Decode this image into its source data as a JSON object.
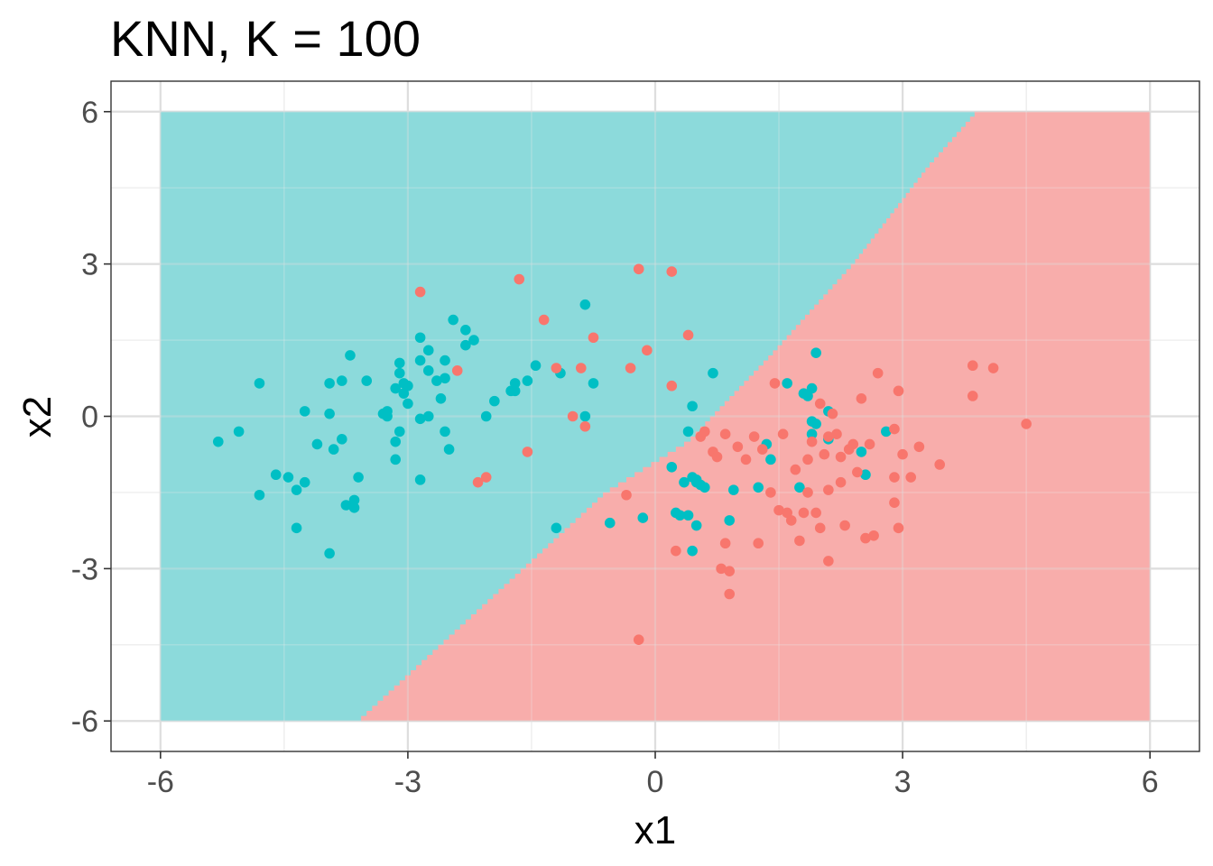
{
  "chart_data": {
    "type": "scatter",
    "title": "KNN, K = 100",
    "xlabel": "x1",
    "ylabel": "x2",
    "xlim": [
      -6.6,
      6.6
    ],
    "ylim": [
      -6.6,
      6.6
    ],
    "x_ticks": [
      -6,
      -3,
      0,
      3,
      6
    ],
    "y_ticks": [
      -6,
      -3,
      0,
      3,
      6
    ],
    "x_tick_labels": [
      "-6",
      "-3",
      "0",
      "3",
      "6"
    ],
    "y_tick_labels": [
      "-6",
      "-3",
      "0",
      "3",
      "6"
    ],
    "grid": true,
    "legend": "none",
    "colors": {
      "teal": "#00BFC4",
      "red": "#F8766D",
      "teal_region": "#8cdadb",
      "red_region": "#f8adab"
    },
    "decision_region": {
      "x_range": [
        -6,
        6
      ],
      "y_range": [
        -6,
        6
      ],
      "boundary_x1_x2": [
        [
          -3.6,
          -6
        ],
        [
          -2.6,
          -4.5
        ],
        [
          -1.6,
          -3.0
        ],
        [
          -0.6,
          -1.5
        ],
        [
          0.4,
          -0.5
        ],
        [
          1.4,
          1.2
        ],
        [
          2.4,
          3.0
        ],
        [
          3.3,
          4.9
        ],
        [
          3.9,
          6
        ]
      ]
    },
    "series": [
      {
        "color": "teal",
        "points": [
          [
            -5.3,
            -0.5
          ],
          [
            -5.05,
            -0.3
          ],
          [
            -4.8,
            0.65
          ],
          [
            -4.8,
            -1.55
          ],
          [
            -4.6,
            -1.15
          ],
          [
            -4.45,
            -1.2
          ],
          [
            -4.35,
            -1.45
          ],
          [
            -4.35,
            -2.2
          ],
          [
            -4.25,
            0.1
          ],
          [
            -4.25,
            -1.3
          ],
          [
            -4.1,
            -0.55
          ],
          [
            -3.95,
            0.65
          ],
          [
            -3.95,
            0.05
          ],
          [
            -3.95,
            -2.7
          ],
          [
            -3.9,
            -0.65
          ],
          [
            -3.8,
            0.7
          ],
          [
            -3.8,
            -0.45
          ],
          [
            -3.75,
            -1.75
          ],
          [
            -3.7,
            1.2
          ],
          [
            -3.65,
            -1.65
          ],
          [
            -3.65,
            -1.8
          ],
          [
            -3.6,
            -1.2
          ],
          [
            -3.5,
            0.7
          ],
          [
            -3.3,
            0.05
          ],
          [
            -3.25,
            0.0
          ],
          [
            -3.25,
            0.1
          ],
          [
            -3.15,
            0.55
          ],
          [
            -3.15,
            -0.5
          ],
          [
            -3.15,
            -0.85
          ],
          [
            -3.1,
            1.05
          ],
          [
            -3.1,
            0.85
          ],
          [
            -3.1,
            -0.3
          ],
          [
            -3.05,
            0.65
          ],
          [
            -3.05,
            0.45
          ],
          [
            -3.0,
            0.6
          ],
          [
            -3.0,
            0.25
          ],
          [
            -2.85,
            1.55
          ],
          [
            -2.85,
            1.1
          ],
          [
            -2.85,
            -0.05
          ],
          [
            -2.85,
            -1.25
          ],
          [
            -2.75,
            1.3
          ],
          [
            -2.75,
            0.9
          ],
          [
            -2.75,
            0.0
          ],
          [
            -2.65,
            0.7
          ],
          [
            -2.6,
            0.35
          ],
          [
            -2.55,
            1.1
          ],
          [
            -2.55,
            0.75
          ],
          [
            -2.55,
            -0.3
          ],
          [
            -2.5,
            -0.65
          ],
          [
            -2.45,
            1.9
          ],
          [
            -2.3,
            1.7
          ],
          [
            -2.3,
            1.4
          ],
          [
            -2.2,
            1.5
          ],
          [
            -2.05,
            0.0
          ],
          [
            -1.95,
            0.3
          ],
          [
            -1.75,
            0.5
          ],
          [
            -1.7,
            0.5
          ],
          [
            -1.7,
            0.65
          ],
          [
            -1.55,
            0.7
          ],
          [
            -1.45,
            1.0
          ],
          [
            -1.2,
            -2.2
          ],
          [
            -1.15,
            0.85
          ],
          [
            -0.85,
            2.2
          ],
          [
            -0.85,
            0.0
          ],
          [
            -0.75,
            0.65
          ],
          [
            -0.55,
            -2.1
          ],
          [
            -0.15,
            -2.0
          ],
          [
            0.2,
            -1.0
          ],
          [
            0.25,
            -1.9
          ],
          [
            0.3,
            -1.95
          ],
          [
            0.35,
            -1.3
          ],
          [
            0.4,
            -0.3
          ],
          [
            0.4,
            -1.95
          ],
          [
            0.45,
            0.2
          ],
          [
            0.45,
            -1.2
          ],
          [
            0.45,
            -2.65
          ],
          [
            0.5,
            -1.3
          ],
          [
            0.5,
            -1.25
          ],
          [
            0.5,
            -2.15
          ],
          [
            0.55,
            -1.35
          ],
          [
            0.6,
            -1.4
          ],
          [
            0.7,
            0.85
          ],
          [
            0.9,
            -2.05
          ],
          [
            0.95,
            -1.45
          ],
          [
            1.25,
            -1.4
          ],
          [
            1.35,
            -0.55
          ],
          [
            1.4,
            -0.85
          ],
          [
            1.6,
            0.65
          ],
          [
            1.75,
            -1.4
          ],
          [
            1.8,
            0.45
          ],
          [
            1.85,
            0.4
          ],
          [
            1.9,
            0.55
          ],
          [
            1.9,
            -0.1
          ],
          [
            1.95,
            1.25
          ],
          [
            1.95,
            -0.15
          ],
          [
            2.1,
            0.1
          ],
          [
            2.1,
            -0.45
          ],
          [
            2.5,
            -0.7
          ],
          [
            2.55,
            -1.15
          ],
          [
            2.8,
            -0.3
          ],
          [
            1.9,
            -0.35
          ]
        ]
      },
      {
        "color": "red",
        "points": [
          [
            -2.85,
            2.45
          ],
          [
            -2.4,
            0.9
          ],
          [
            -2.15,
            -1.3
          ],
          [
            -2.05,
            -1.2
          ],
          [
            -1.65,
            2.7
          ],
          [
            -1.55,
            -0.7
          ],
          [
            -1.35,
            1.9
          ],
          [
            -1.2,
            0.95
          ],
          [
            -1.0,
            0.0
          ],
          [
            -0.9,
            0.95
          ],
          [
            -0.85,
            -0.2
          ],
          [
            -0.75,
            1.55
          ],
          [
            -0.35,
            -1.55
          ],
          [
            -0.3,
            0.95
          ],
          [
            -0.2,
            2.9
          ],
          [
            -0.2,
            -4.4
          ],
          [
            -0.1,
            1.3
          ],
          [
            0.2,
            0.6
          ],
          [
            0.2,
            2.85
          ],
          [
            0.25,
            -2.65
          ],
          [
            0.4,
            1.6
          ],
          [
            0.55,
            -0.4
          ],
          [
            0.6,
            -0.3
          ],
          [
            0.7,
            -0.7
          ],
          [
            0.75,
            -0.8
          ],
          [
            0.8,
            -3.0
          ],
          [
            0.85,
            -0.35
          ],
          [
            0.85,
            -2.5
          ],
          [
            0.9,
            -3.05
          ],
          [
            0.9,
            -3.5
          ],
          [
            1.0,
            -0.6
          ],
          [
            1.1,
            -0.85
          ],
          [
            1.2,
            -0.4
          ],
          [
            1.25,
            -2.5
          ],
          [
            1.3,
            -0.65
          ],
          [
            1.4,
            -1.5
          ],
          [
            1.45,
            0.65
          ],
          [
            1.5,
            -1.85
          ],
          [
            1.55,
            -0.35
          ],
          [
            1.6,
            -1.9
          ],
          [
            1.65,
            -2.05
          ],
          [
            1.7,
            -1.05
          ],
          [
            1.75,
            -2.45
          ],
          [
            1.8,
            -1.9
          ],
          [
            1.85,
            -0.85
          ],
          [
            1.85,
            -1.5
          ],
          [
            1.9,
            -0.5
          ],
          [
            1.95,
            -1.9
          ],
          [
            2.0,
            0.25
          ],
          [
            2.0,
            -2.2
          ],
          [
            2.05,
            -0.75
          ],
          [
            2.1,
            -0.4
          ],
          [
            2.1,
            -1.45
          ],
          [
            2.1,
            -2.85
          ],
          [
            2.15,
            0.05
          ],
          [
            2.2,
            -0.35
          ],
          [
            2.25,
            -0.8
          ],
          [
            2.25,
            -1.3
          ],
          [
            2.3,
            -2.15
          ],
          [
            2.35,
            -0.65
          ],
          [
            2.4,
            -0.55
          ],
          [
            2.45,
            -1.1
          ],
          [
            2.5,
            0.35
          ],
          [
            2.55,
            -2.4
          ],
          [
            2.6,
            -0.55
          ],
          [
            2.65,
            -2.35
          ],
          [
            2.7,
            0.85
          ],
          [
            2.9,
            -0.25
          ],
          [
            2.9,
            -1.2
          ],
          [
            2.9,
            -1.7
          ],
          [
            2.95,
            0.5
          ],
          [
            2.95,
            -2.2
          ],
          [
            3.0,
            -0.75
          ],
          [
            3.1,
            -1.2
          ],
          [
            3.2,
            -0.6
          ],
          [
            3.45,
            -0.95
          ],
          [
            3.85,
            1.0
          ],
          [
            3.85,
            0.4
          ],
          [
            4.1,
            0.95
          ],
          [
            4.5,
            -0.15
          ]
        ]
      }
    ]
  }
}
